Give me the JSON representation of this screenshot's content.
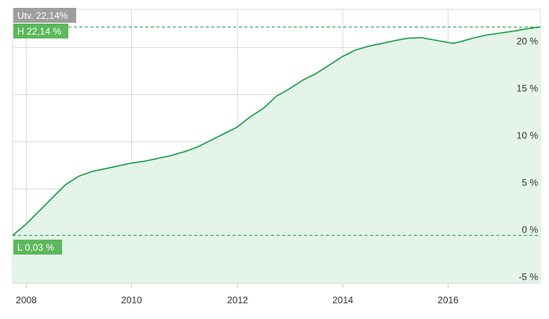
{
  "chart_data": {
    "type": "area",
    "title": "",
    "xlabel": "",
    "ylabel": "",
    "x_ticks": [
      "2008",
      "2010",
      "2012",
      "2014",
      "2016"
    ],
    "y_ticks": [
      "20 %",
      "15 %",
      "10 %",
      "5 %",
      "0 %",
      "-5 %"
    ],
    "y_tick_values": [
      20,
      15,
      10,
      5,
      0,
      -5
    ],
    "xlim": [
      2007.75,
      2017.75
    ],
    "ylim": [
      -5,
      24
    ],
    "grid": true,
    "colors": {
      "line": "#1e9e4a",
      "fill": "#e4f4e8",
      "badge_green": "#5cb85c",
      "badge_gray": "#9e9e9e",
      "grid": "#dddddd"
    },
    "annotations": {
      "utv": {
        "label": "Utv. 22,14%",
        "value": 22.14
      },
      "high": {
        "label": "H 22,14 %",
        "value": 22.14
      },
      "low": {
        "label": "L 0,03 %",
        "value": 0.03
      }
    },
    "series": [
      {
        "x": [
          2007.75,
          2008.0,
          2008.25,
          2008.5,
          2008.75,
          2009.0,
          2009.25,
          2009.5,
          2009.75,
          2010.0,
          2010.25,
          2010.5,
          2010.75,
          2011.0,
          2011.25,
          2011.5,
          2011.75,
          2012.0,
          2012.25,
          2012.5,
          2012.75,
          2013.0,
          2013.25,
          2013.5,
          2013.75,
          2014.0,
          2014.25,
          2014.5,
          2014.75,
          2015.0,
          2015.25,
          2015.5,
          2015.75,
          2016.0,
          2016.1,
          2016.25,
          2016.5,
          2016.75,
          2017.0,
          2017.25,
          2017.5,
          2017.75
        ],
        "values": [
          0.03,
          1.2,
          2.6,
          4.0,
          5.4,
          6.3,
          6.8,
          7.1,
          7.4,
          7.7,
          7.9,
          8.2,
          8.5,
          8.9,
          9.4,
          10.1,
          10.8,
          11.5,
          12.6,
          13.5,
          14.8,
          15.6,
          16.5,
          17.2,
          18.1,
          19.0,
          19.7,
          20.1,
          20.4,
          20.7,
          20.95,
          21.0,
          20.75,
          20.5,
          20.4,
          20.6,
          21.0,
          21.3,
          21.5,
          21.7,
          21.95,
          22.14
        ]
      }
    ]
  }
}
